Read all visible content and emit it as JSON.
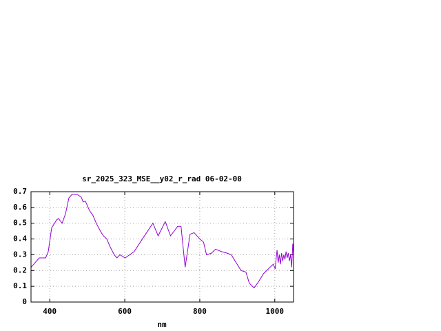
{
  "chart_data": {
    "type": "line",
    "title": "sr_2025_323_MSE__y02_r_rad 06-02-00",
    "x_label": "nm",
    "x": [
      350,
      372,
      389,
      396,
      405,
      418,
      423,
      433,
      442,
      451,
      460,
      475,
      484,
      489,
      495,
      506,
      515,
      524,
      535,
      543,
      552,
      561,
      572,
      579,
      587,
      601,
      625,
      647,
      675,
      689,
      708,
      722,
      741,
      750,
      761,
      774,
      785,
      800,
      810,
      818,
      831,
      842,
      858,
      873,
      884,
      897,
      910,
      923,
      932,
      945,
      957,
      970,
      987,
      996,
      1001,
      1003,
      1006,
      1009,
      1012,
      1015,
      1018,
      1021,
      1024,
      1027,
      1030,
      1033,
      1036,
      1039,
      1042,
      1045,
      1048,
      1050
    ],
    "series": [
      {
        "name": "sr_2025_323_MSE__y02_r_rad 06-02-00",
        "color": "#9400d3",
        "values": [
          0.22,
          0.28,
          0.28,
          0.32,
          0.47,
          0.52,
          0.53,
          0.5,
          0.56,
          0.66,
          0.685,
          0.68,
          0.665,
          0.635,
          0.64,
          0.58,
          0.55,
          0.5,
          0.45,
          0.42,
          0.4,
          0.35,
          0.3,
          0.28,
          0.3,
          0.28,
          0.32,
          0.4,
          0.5,
          0.42,
          0.51,
          0.42,
          0.48,
          0.48,
          0.22,
          0.43,
          0.44,
          0.4,
          0.38,
          0.3,
          0.31,
          0.335,
          0.32,
          0.31,
          0.3,
          0.25,
          0.2,
          0.19,
          0.12,
          0.09,
          0.13,
          0.18,
          0.22,
          0.24,
          0.21,
          0.26,
          0.33,
          0.25,
          0.3,
          0.24,
          0.31,
          0.26,
          0.3,
          0.27,
          0.32,
          0.28,
          0.31,
          0.26,
          0.3,
          0.22,
          0.37,
          0.3
        ]
      }
    ],
    "xlim": [
      350,
      1050
    ],
    "xticks": [
      400,
      600,
      800,
      1000
    ],
    "ylim": [
      0,
      0.7
    ],
    "yticks": [
      0,
      0.1,
      0.2,
      0.3,
      0.4,
      0.5,
      0.6,
      0.7
    ],
    "grid": true
  }
}
